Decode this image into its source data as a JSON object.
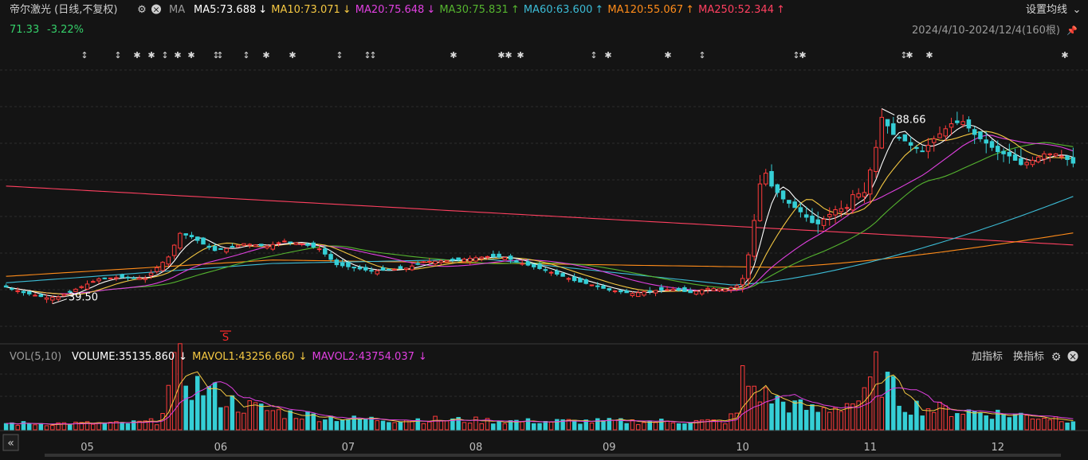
{
  "header": {
    "title": "帝尔激光 (日线,不复权)",
    "ma_label": "MA",
    "ma_items": [
      {
        "label": "MA5:73.688",
        "arrow": "↓",
        "color": "#ffffff"
      },
      {
        "label": "MA10:73.071",
        "arrow": "↓",
        "color": "#f5c842"
      },
      {
        "label": "MA20:75.648",
        "arrow": "↓",
        "color": "#e040e0"
      },
      {
        "label": "MA30:75.831",
        "arrow": "↑",
        "color": "#55b42f"
      },
      {
        "label": "MA60:63.600",
        "arrow": "↑",
        "color": "#3cbcd6"
      },
      {
        "label": "MA120:55.067",
        "arrow": "↑",
        "color": "#ff8c1a"
      },
      {
        "label": "MA250:52.344",
        "arrow": "↑",
        "color": "#ff4060"
      }
    ],
    "settings_label": "设置均线",
    "price": "71.33",
    "change": "-3.22%",
    "range": "2024/4/10-2024/12/4(160根)"
  },
  "volume_header": {
    "label": "VOL(5,10)",
    "items": [
      {
        "label": "VOLUME:35135.860",
        "arrow": "↓",
        "color": "#ffffff"
      },
      {
        "label": "MAVOL1:43256.660",
        "arrow": "↓",
        "color": "#f5c842"
      },
      {
        "label": "MAVOL2:43754.037",
        "arrow": "↓",
        "color": "#e040e0"
      }
    ],
    "add_indicator": "加指标",
    "switch_indicator": "换指标"
  },
  "colors": {
    "up": "#ff3b3b",
    "down": "#35cfd6",
    "grid": "#2c2c2c",
    "ma5": "#ffffff",
    "ma10": "#f5c842",
    "ma20": "#e040e0",
    "ma30": "#55b42f",
    "ma60": "#3cbcd6",
    "ma120": "#ff8c1a",
    "ma250": "#ff4060"
  },
  "chart_data": {
    "type": "candlestick",
    "x_range": [
      "2024/4/10",
      "2024/12/4"
    ],
    "count": 160,
    "x_tick_labels": [
      "05",
      "06",
      "07",
      "08",
      "09",
      "10",
      "11",
      "12"
    ],
    "x_tick_index": [
      14,
      37,
      59,
      81,
      104,
      127,
      149,
      171
    ],
    "ylim": [
      33,
      93
    ],
    "max_label": "88.66",
    "min_label": "39.50",
    "signal_label": "S",
    "ma_end_values": {
      "ma5": 73.688,
      "ma10": 73.071,
      "ma20": 75.648,
      "ma30": 75.831,
      "ma60": 63.6,
      "ma120": 55.067,
      "ma250": 52.344
    },
    "price_anchors": [
      [
        0,
        42.5
      ],
      [
        3,
        41.2
      ],
      [
        7,
        40.0
      ],
      [
        9,
        40.2
      ],
      [
        12,
        42.0
      ],
      [
        16,
        44.4
      ],
      [
        20,
        44.8
      ],
      [
        24,
        44.5
      ],
      [
        28,
        49.5
      ],
      [
        30,
        55.0
      ],
      [
        32,
        54.2
      ],
      [
        34,
        52.5
      ],
      [
        36,
        51.0
      ],
      [
        38,
        51.5
      ],
      [
        41,
        52.6
      ],
      [
        45,
        52.0
      ],
      [
        48,
        53.2
      ],
      [
        51,
        52.6
      ],
      [
        54,
        51.4
      ],
      [
        57,
        47.7
      ],
      [
        60,
        47.0
      ],
      [
        63,
        46.2
      ],
      [
        66,
        46.5
      ],
      [
        69,
        46.9
      ],
      [
        72,
        48.4
      ],
      [
        75,
        48.6
      ],
      [
        78,
        48.8
      ],
      [
        80,
        49.2
      ],
      [
        83,
        49.6
      ],
      [
        86,
        49.4
      ],
      [
        89,
        48.0
      ],
      [
        92,
        46.8
      ],
      [
        95,
        45.5
      ],
      [
        98,
        44.0
      ],
      [
        101,
        43.0
      ],
      [
        104,
        41.8
      ],
      [
        108,
        41.0
      ],
      [
        111,
        41.6
      ],
      [
        115,
        42.0
      ],
      [
        118,
        41.2
      ],
      [
        121,
        42.2
      ],
      [
        124,
        42.0
      ],
      [
        126,
        42.8
      ],
      [
        127,
        44.5
      ],
      [
        128,
        50.0
      ],
      [
        129,
        58.0
      ],
      [
        130,
        66.5
      ],
      [
        131,
        69.0
      ],
      [
        132,
        66.0
      ],
      [
        134,
        63.0
      ],
      [
        137,
        60.0
      ],
      [
        139,
        57.5
      ],
      [
        140,
        57.2
      ],
      [
        143,
        60.5
      ],
      [
        145,
        61.0
      ],
      [
        146,
        64.0
      ],
      [
        148,
        64.5
      ],
      [
        150,
        75.0
      ],
      [
        151,
        82.0
      ],
      [
        152,
        80.0
      ],
      [
        153,
        78.0
      ],
      [
        155,
        76.5
      ],
      [
        156,
        75.5
      ],
      [
        158,
        74.0
      ],
      [
        160,
        77.0
      ],
      [
        163,
        80.5
      ],
      [
        165,
        81.0
      ],
      [
        167,
        78.0
      ],
      [
        169,
        76.0
      ],
      [
        171,
        74.0
      ],
      [
        173,
        73.0
      ],
      [
        175,
        71.0
      ],
      [
        177,
        72.0
      ],
      [
        179,
        73.5
      ],
      [
        181,
        73.5
      ],
      [
        182,
        73.0
      ],
      [
        184,
        71.33
      ]
    ],
    "volume_anchors": [
      [
        0,
        3
      ],
      [
        20,
        3
      ],
      [
        26,
        4
      ],
      [
        29,
        27
      ],
      [
        30,
        30
      ],
      [
        32,
        22
      ],
      [
        34,
        20
      ],
      [
        36,
        17
      ],
      [
        40,
        12
      ],
      [
        48,
        8
      ],
      [
        60,
        5
      ],
      [
        70,
        5
      ],
      [
        90,
        4
      ],
      [
        110,
        4
      ],
      [
        124,
        4
      ],
      [
        126,
        8
      ],
      [
        127,
        25
      ],
      [
        129,
        20
      ],
      [
        131,
        16
      ],
      [
        135,
        12
      ],
      [
        140,
        9
      ],
      [
        148,
        15
      ],
      [
        150,
        28
      ],
      [
        152,
        22
      ],
      [
        155,
        12
      ],
      [
        160,
        10
      ],
      [
        170,
        8
      ],
      [
        180,
        6
      ],
      [
        184,
        5
      ]
    ]
  }
}
